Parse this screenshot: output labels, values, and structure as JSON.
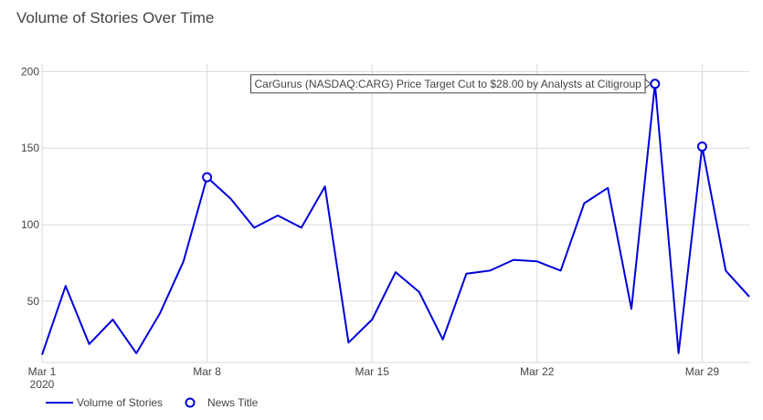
{
  "chart_data": {
    "type": "line",
    "title": "Volume of Stories Over Time",
    "x": [
      "2020-03-01",
      "2020-03-02",
      "2020-03-03",
      "2020-03-04",
      "2020-03-05",
      "2020-03-06",
      "2020-03-07",
      "2020-03-08",
      "2020-03-09",
      "2020-03-10",
      "2020-03-11",
      "2020-03-12",
      "2020-03-13",
      "2020-03-14",
      "2020-03-15",
      "2020-03-16",
      "2020-03-17",
      "2020-03-18",
      "2020-03-19",
      "2020-03-20",
      "2020-03-21",
      "2020-03-22",
      "2020-03-23",
      "2020-03-24",
      "2020-03-25",
      "2020-03-26",
      "2020-03-27",
      "2020-03-28",
      "2020-03-29",
      "2020-03-30",
      "2020-03-31"
    ],
    "series": [
      {
        "name": "Volume of Stories",
        "values": [
          15,
          60,
          22,
          38,
          16,
          42,
          76,
          131,
          117,
          98,
          106,
          98,
          125,
          23,
          38,
          69,
          56,
          25,
          68,
          70,
          77,
          76,
          70,
          114,
          124,
          45,
          192,
          16,
          151,
          70,
          53
        ],
        "color": "#0000dd"
      }
    ],
    "markers": {
      "name": "News Title",
      "points": [
        {
          "x": "2020-03-08",
          "y": 131
        },
        {
          "x": "2020-03-27",
          "y": 192
        },
        {
          "x": "2020-03-29",
          "y": 151
        }
      ]
    },
    "annotation": {
      "text": "CarGurus (NASDAQ:CARG) Price Target Cut to $28.00 by Analysts at Citigroup",
      "x": "2020-03-27",
      "y": 192
    },
    "x_ticks": [
      {
        "x": "2020-03-01",
        "label": "Mar 1",
        "sublabel": "2020"
      },
      {
        "x": "2020-03-08",
        "label": "Mar 8",
        "sublabel": ""
      },
      {
        "x": "2020-03-15",
        "label": "Mar 15",
        "sublabel": ""
      },
      {
        "x": "2020-03-22",
        "label": "Mar 22",
        "sublabel": ""
      },
      {
        "x": "2020-03-29",
        "label": "Mar 29",
        "sublabel": ""
      }
    ],
    "y_ticks": [
      50,
      100,
      150,
      200
    ],
    "xlim": [
      "2020-03-01",
      "2020-03-31"
    ],
    "ylim": [
      10,
      205
    ],
    "grid": true,
    "legend_position": "bottom-left",
    "colors": {
      "line": "#0000dd",
      "grid": "#d9d9d9",
      "text": "#444444"
    }
  }
}
